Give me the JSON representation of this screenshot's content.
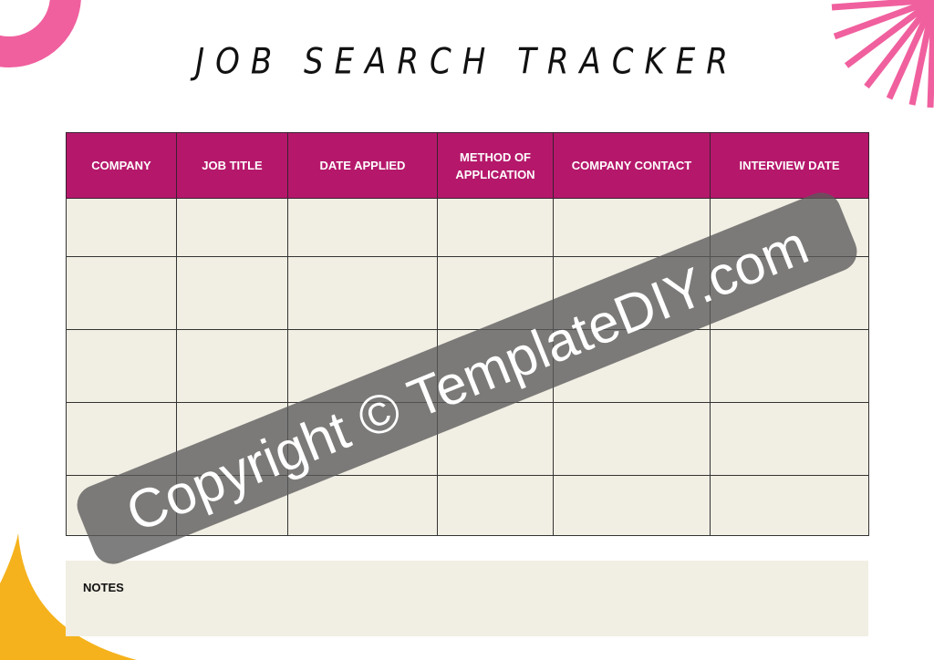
{
  "title": "JOB SEARCH TRACKER",
  "table": {
    "headers": [
      "COMPANY",
      "JOB TITLE",
      "DATE APPLIED",
      "METHOD OF APPLICATION",
      "COMPANY CONTACT",
      "INTERVIEW DATE"
    ],
    "rows": [
      [
        "",
        "",
        "",
        "",
        "",
        ""
      ],
      [
        "",
        "",
        "",
        "",
        "",
        ""
      ],
      [
        "",
        "",
        "",
        "",
        "",
        ""
      ],
      [
        "",
        "",
        "",
        "",
        "",
        ""
      ],
      [
        "",
        "",
        "",
        "",
        "",
        ""
      ]
    ]
  },
  "notes": {
    "label": "NOTES"
  },
  "watermark": "Copyright © TemplateDIY.com",
  "colors": {
    "header": "#b5186b",
    "cell": "#f1eee3",
    "pink_deco": "#f0609e",
    "yellow_deco": "#f5b21c"
  }
}
